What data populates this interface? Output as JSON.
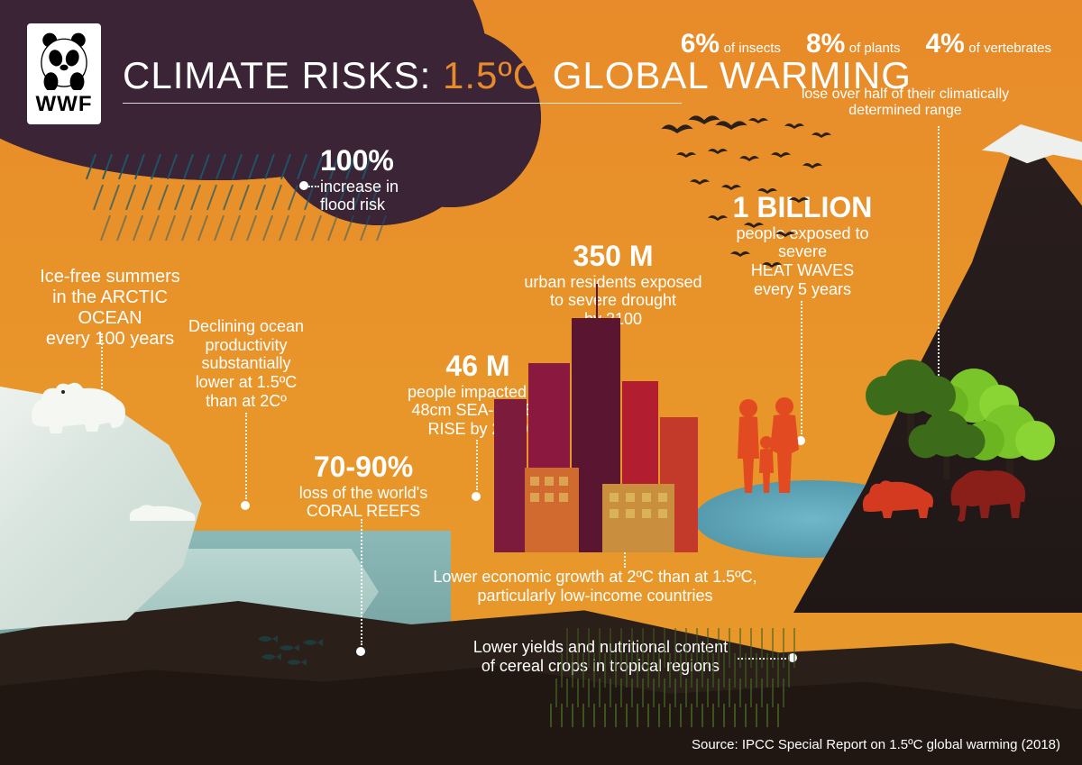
{
  "logo_text": "WWF",
  "title_prefix": "CLIMATE RISKS: ",
  "title_accent": "1.5ºC",
  "title_suffix": " GLOBAL WARMING",
  "species": {
    "insects_pct": "6%",
    "insects_label": "of insects",
    "plants_pct": "8%",
    "plants_label": "of plants",
    "verts_pct": "4%",
    "verts_label": "of vertebrates",
    "caption": "lose over half of their climatically determined range"
  },
  "flood": {
    "big": "100%",
    "line1": "increase in",
    "line2": "flood risk"
  },
  "arctic": {
    "line1": "Ice-free summers",
    "line2": "in the ARCTIC OCEAN",
    "line3": "every 100 years"
  },
  "oceanprod": {
    "line1": "Declining ocean",
    "line2": "productivity",
    "line3": "substantially",
    "line4": "lower at 1.5ºC",
    "line5": "than at 2Cº"
  },
  "coral": {
    "big": "70-90%",
    "line1": "loss of the world's",
    "line2": "CORAL REEFS"
  },
  "sealevel": {
    "big": "46 M",
    "line1": "people impacted by",
    "line2": "48cm SEA-LEVEL",
    "line3": "RISE by 2100"
  },
  "drought": {
    "big": "350 M",
    "line1": "urban residents exposed",
    "line2": "to severe drought",
    "line3": "by 2100"
  },
  "heat": {
    "big": "1 BILLION",
    "line1": "people exposed to",
    "line2": "severe",
    "line3": "HEAT WAVES",
    "line4": "every 5 years"
  },
  "econ": "Lower economic growth at 2ºC than at 1.5ºC, particularly low-income countries",
  "crops": "Lower yields and nutritional content of cereal crops in tropical regions",
  "source": "Source: IPCC Special Report on 1.5ºC global warming (2018)",
  "colors": {
    "sky": "#e88b2a",
    "cloud": "#3b2435",
    "rain": "#1b5a6b",
    "ground_dark": "#2b2019",
    "ground_darker": "#201712",
    "water": "#6fb7c9",
    "ice": "#eef2ee",
    "tree_light": "#7ac62a",
    "tree_dark": "#3c6b1a",
    "city1": "#7d1b3d",
    "city2": "#5a1531",
    "city3": "#b21e2f",
    "city4": "#c33a2a",
    "silhouette": "#d43a1f",
    "white": "#ffffff"
  }
}
